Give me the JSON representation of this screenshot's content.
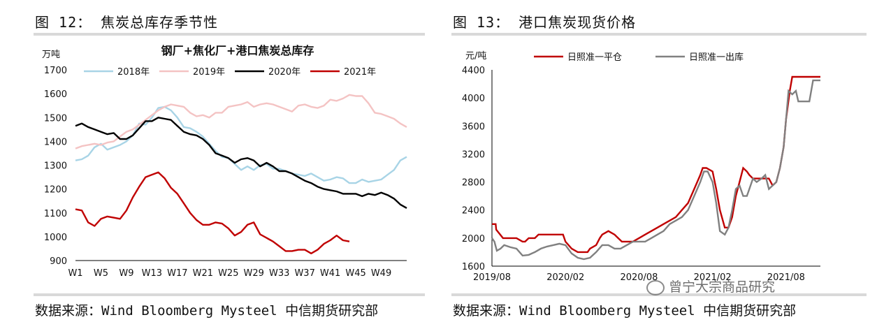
{
  "left": {
    "figure_title": "图 12：  焦炭总库存季节性",
    "source": "数据来源：Wind Bloomberg Mysteel 中信期货研究部"
  },
  "right": {
    "figure_title": "图 13：  港口焦炭现货价格",
    "source": "数据来源：Wind Bloomberg Mysteel 中信期货研究部"
  },
  "watermark": "曾宁大宗商品研究",
  "chart_data": [
    {
      "type": "line",
      "title": "钢厂+焦化厂+港口焦炭总库存",
      "ylabel": "万吨",
      "xlabel": "",
      "ylim": [
        900,
        1700
      ],
      "yticks": [
        900,
        1000,
        1100,
        1200,
        1300,
        1400,
        1500,
        1600,
        1700
      ],
      "xtick_labels": [
        "W1",
        "W5",
        "W9",
        "W13",
        "W17",
        "W21",
        "W25",
        "W29",
        "W33",
        "W37",
        "W41",
        "W45",
        "W49"
      ],
      "xtick_weeks": [
        1,
        5,
        9,
        13,
        17,
        21,
        25,
        29,
        33,
        37,
        41,
        45,
        49
      ],
      "x_range": [
        1,
        53
      ],
      "legend_position": "top",
      "series": [
        {
          "name": "2018年",
          "color": "#a8d4e6",
          "x": [
            1,
            2,
            3,
            4,
            5,
            6,
            7,
            8,
            9,
            10,
            11,
            12,
            13,
            14,
            15,
            16,
            17,
            18,
            19,
            20,
            21,
            22,
            23,
            24,
            25,
            26,
            27,
            28,
            29,
            30,
            31,
            32,
            33,
            34,
            35,
            36,
            37,
            38,
            39,
            40,
            41,
            42,
            43,
            44,
            45,
            46,
            47,
            48,
            49,
            50,
            51,
            52,
            53
          ],
          "y": [
            1320,
            1325,
            1340,
            1375,
            1390,
            1365,
            1375,
            1385,
            1400,
            1425,
            1475,
            1470,
            1500,
            1540,
            1545,
            1530,
            1500,
            1460,
            1455,
            1440,
            1420,
            1390,
            1360,
            1335,
            1330,
            1305,
            1280,
            1295,
            1280,
            1300,
            1305,
            1285,
            1285,
            1275,
            1265,
            1260,
            1255,
            1265,
            1250,
            1235,
            1240,
            1250,
            1245,
            1225,
            1225,
            1240,
            1230,
            1235,
            1240,
            1260,
            1280,
            1320,
            1335
          ]
        },
        {
          "name": "2019年",
          "color": "#f4c3c3",
          "x": [
            1,
            2,
            3,
            4,
            5,
            6,
            7,
            8,
            9,
            10,
            11,
            12,
            13,
            14,
            15,
            16,
            17,
            18,
            19,
            20,
            21,
            22,
            23,
            24,
            25,
            26,
            27,
            28,
            29,
            30,
            31,
            32,
            33,
            34,
            35,
            36,
            37,
            38,
            39,
            40,
            41,
            42,
            43,
            44,
            45,
            46,
            47,
            48,
            49,
            50,
            51,
            52,
            53
          ],
          "y": [
            1370,
            1380,
            1385,
            1390,
            1385,
            1395,
            1400,
            1420,
            1440,
            1450,
            1470,
            1490,
            1510,
            1530,
            1545,
            1555,
            1550,
            1545,
            1520,
            1505,
            1510,
            1500,
            1520,
            1520,
            1545,
            1550,
            1555,
            1565,
            1545,
            1555,
            1560,
            1555,
            1545,
            1535,
            1525,
            1550,
            1555,
            1545,
            1540,
            1550,
            1575,
            1570,
            1580,
            1595,
            1590,
            1590,
            1560,
            1520,
            1515,
            1505,
            1495,
            1475,
            1460
          ]
        },
        {
          "name": "2020年",
          "color": "#000000",
          "x": [
            1,
            2,
            3,
            4,
            5,
            6,
            7,
            8,
            9,
            10,
            11,
            12,
            13,
            14,
            15,
            16,
            17,
            18,
            19,
            20,
            21,
            22,
            23,
            24,
            25,
            26,
            27,
            28,
            29,
            30,
            31,
            32,
            33,
            34,
            35,
            36,
            37,
            38,
            39,
            40,
            41,
            42,
            43,
            44,
            45,
            46,
            47,
            48,
            49,
            50,
            51,
            52,
            53
          ],
          "y": [
            1465,
            1475,
            1460,
            1450,
            1440,
            1430,
            1435,
            1410,
            1410,
            1425,
            1455,
            1485,
            1485,
            1500,
            1495,
            1490,
            1465,
            1440,
            1430,
            1425,
            1410,
            1385,
            1350,
            1340,
            1330,
            1310,
            1325,
            1330,
            1320,
            1295,
            1310,
            1295,
            1275,
            1275,
            1265,
            1250,
            1235,
            1225,
            1210,
            1200,
            1195,
            1190,
            1180,
            1180,
            1180,
            1170,
            1180,
            1175,
            1185,
            1175,
            1160,
            1135,
            1120
          ]
        },
        {
          "name": "2021年",
          "color": "#c00000",
          "x": [
            1,
            2,
            3,
            4,
            5,
            6,
            7,
            8,
            9,
            10,
            11,
            12,
            13,
            14,
            15,
            16,
            17,
            18,
            19,
            20,
            21,
            22,
            23,
            24,
            25,
            26,
            27,
            28,
            29,
            30,
            31,
            32,
            33,
            34,
            35,
            36,
            37,
            38,
            39,
            40,
            41,
            42,
            43,
            44
          ],
          "y": [
            1115,
            1110,
            1060,
            1045,
            1075,
            1085,
            1080,
            1075,
            1110,
            1165,
            1210,
            1250,
            1260,
            1270,
            1245,
            1205,
            1180,
            1140,
            1100,
            1070,
            1050,
            1050,
            1060,
            1055,
            1035,
            1005,
            1020,
            1050,
            1060,
            1010,
            995,
            980,
            960,
            940,
            940,
            945,
            945,
            930,
            945,
            970,
            985,
            1005,
            985,
            980
          ]
        }
      ]
    },
    {
      "type": "line",
      "title": "",
      "ylabel": "元/吨",
      "xlabel": "",
      "ylim": [
        1600,
        4400
      ],
      "yticks": [
        1600,
        2000,
        2400,
        2800,
        3200,
        3600,
        4000,
        4400
      ],
      "xtick_labels": [
        "2019/08",
        "2020/02",
        "2020/08",
        "2021/02",
        "2021/08"
      ],
      "xtick_months": [
        0,
        6,
        12,
        18,
        24
      ],
      "x_range": [
        0,
        26.8
      ],
      "legend_position": "top",
      "series": [
        {
          "name": "日照准一平仓",
          "color": "#c00000",
          "x": [
            0,
            0.3,
            0.35,
            0.9,
            1.0,
            1.2,
            1.5,
            2.0,
            2.5,
            2.7,
            3.0,
            3.5,
            3.8,
            4.0,
            4.5,
            5.0,
            5.5,
            5.8,
            6.0,
            6.5,
            7.0,
            7.5,
            7.8,
            8.0,
            8.5,
            8.8,
            9.0,
            9.5,
            10.0,
            10.3,
            10.6,
            11.0,
            11.5,
            12.0,
            12.5,
            13.0,
            13.5,
            14.0,
            14.5,
            15.0,
            15.5,
            16.0,
            16.5,
            17.0,
            17.2,
            17.5,
            18.0,
            18.3,
            18.6,
            19.0,
            19.3,
            19.6,
            19.9,
            20.2,
            20.5,
            20.8,
            21.0,
            21.3,
            21.6,
            22.0,
            22.3,
            22.6,
            22.9,
            23.2,
            23.5,
            23.8,
            24.0,
            24.3,
            24.5,
            24.8,
            25.0,
            25.3,
            25.6,
            26.0,
            26.5,
            26.8
          ],
          "y": [
            2200,
            2200,
            2120,
            2000,
            2000,
            2000,
            2000,
            2000,
            1950,
            1950,
            2000,
            2000,
            2050,
            2050,
            2050,
            2050,
            2050,
            2050,
            1950,
            1850,
            1800,
            1800,
            1800,
            1850,
            1900,
            2000,
            2050,
            2100,
            2050,
            2000,
            1950,
            1950,
            1950,
            2000,
            2050,
            2100,
            2150,
            2200,
            2250,
            2300,
            2400,
            2500,
            2700,
            2900,
            3000,
            3000,
            2950,
            2700,
            2400,
            2150,
            2150,
            2300,
            2600,
            2800,
            3000,
            2950,
            2900,
            2850,
            2850,
            2850,
            2850,
            2850,
            2750,
            2800,
            3000,
            3300,
            3700,
            4100,
            4300,
            4300,
            4300,
            4300,
            4300,
            4300,
            4300,
            4300
          ]
        },
        {
          "name": "日照准一出库",
          "color": "#808080",
          "x": [
            0,
            0.2,
            0.4,
            0.7,
            1.0,
            1.5,
            2.0,
            2.5,
            3.0,
            3.5,
            4.0,
            4.5,
            5.0,
            5.5,
            6.0,
            6.5,
            7.0,
            7.5,
            8.0,
            8.5,
            9.0,
            9.5,
            10.0,
            10.5,
            11.0,
            11.5,
            12.0,
            12.5,
            13.0,
            13.5,
            14.0,
            14.5,
            15.0,
            15.5,
            16.0,
            16.5,
            17.0,
            17.3,
            17.6,
            18.0,
            18.3,
            18.6,
            19.0,
            19.3,
            19.6,
            19.9,
            20.2,
            20.5,
            20.8,
            21.0,
            21.3,
            21.6,
            22.0,
            22.3,
            22.6,
            22.9,
            23.2,
            23.5,
            23.8,
            24.0,
            24.2,
            24.5,
            24.8,
            25.0,
            25.3,
            25.6,
            25.9,
            26.2,
            26.5,
            26.8
          ],
          "y": [
            2000,
            1950,
            1820,
            1850,
            1900,
            1870,
            1850,
            1750,
            1760,
            1800,
            1850,
            1880,
            1900,
            1920,
            1900,
            1780,
            1720,
            1700,
            1720,
            1800,
            1900,
            1900,
            1850,
            1850,
            1900,
            1950,
            1950,
            1950,
            2000,
            2050,
            2100,
            2200,
            2250,
            2300,
            2400,
            2600,
            2800,
            2950,
            2950,
            2800,
            2500,
            2100,
            2050,
            2150,
            2400,
            2700,
            2750,
            2600,
            2600,
            2700,
            2850,
            2800,
            2850,
            2900,
            2700,
            2750,
            2800,
            3000,
            3300,
            3700,
            4100,
            4050,
            4100,
            3950,
            3950,
            3950,
            3950,
            4250,
            4250,
            4250
          ]
        }
      ]
    }
  ]
}
